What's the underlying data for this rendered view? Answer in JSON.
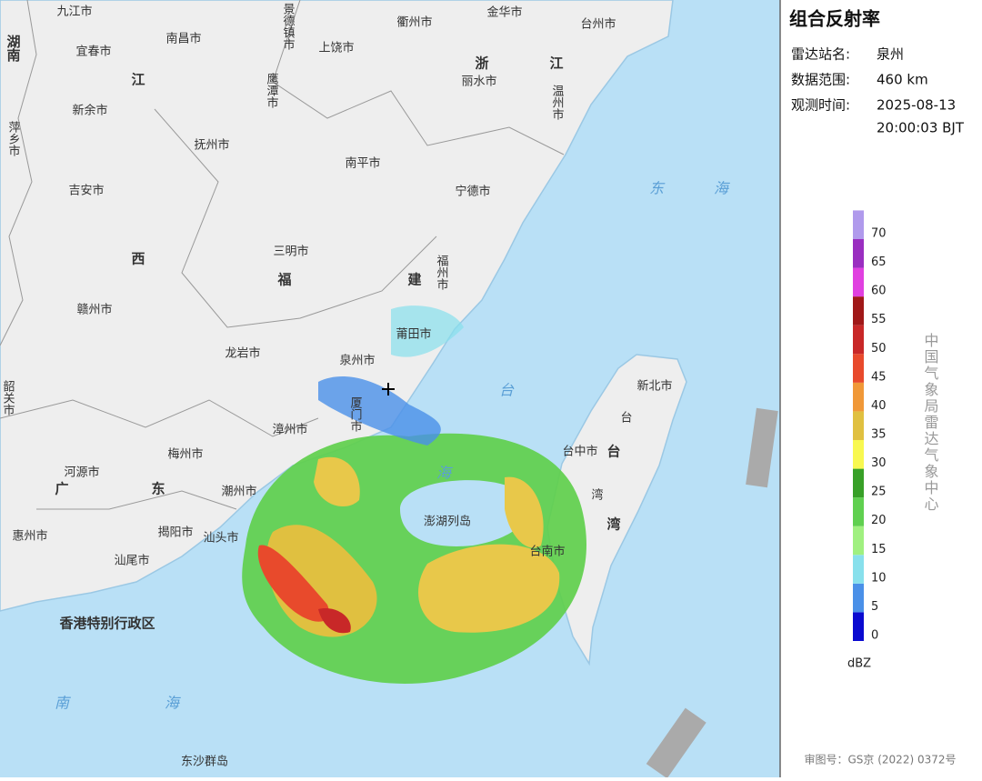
{
  "panel": {
    "title": "组合反射率",
    "info": [
      {
        "label": "雷达站名:",
        "value": [
          "泉州"
        ]
      },
      {
        "label": "数据范围:",
        "value": [
          "460 km"
        ]
      },
      {
        "label": "观测时间:",
        "value": [
          "2025-08-13",
          "20:00:03 BJT"
        ]
      }
    ],
    "legend": {
      "levels": [
        0,
        5,
        10,
        15,
        20,
        25,
        30,
        35,
        40,
        45,
        50,
        55,
        60,
        65,
        70
      ],
      "colors": [
        "#0a0ad0",
        "#4a90e8",
        "#88e0ec",
        "#a0f080",
        "#60d050",
        "#38a028",
        "#f8f850",
        "#e0c040",
        "#f09838",
        "#e84a2c",
        "#c82828",
        "#a01818",
        "#e040e0",
        "#9a2ec0",
        "#b09aec"
      ],
      "unit": "dBZ"
    },
    "credit": "中国气象局雷达气象中心",
    "footer": "审图号：GS京 (2022) 0372号"
  },
  "map": {
    "labels": [
      "九江市",
      "景德镇市",
      "衢州市",
      "金华市",
      "台州市",
      "湖南",
      "宜春市",
      "南昌市",
      "上饶市",
      "浙",
      "江",
      "鹰潭市",
      "江",
      "丽水市",
      "温州市",
      "萍乡市",
      "新余市",
      "抚州市",
      "南平市",
      "宁德市",
      "吉安市",
      "东",
      "海",
      "三明市",
      "西",
      "福",
      "建",
      "福州市",
      "赣州市",
      "莆田市",
      "龙岩市",
      "泉州市",
      "台",
      "韶关市",
      "厦门市",
      "漳州市",
      "新北市",
      "台",
      "台中市",
      "台",
      "梅州市",
      "河源市",
      "广",
      "东",
      "潮州市",
      "湾",
      "澎湖列岛",
      "湾",
      "揭阳市",
      "汕头市",
      "台南市",
      "惠州市",
      "汕尾市",
      "香港特别行政区",
      "南",
      "海",
      "东沙群岛",
      "海"
    ]
  }
}
